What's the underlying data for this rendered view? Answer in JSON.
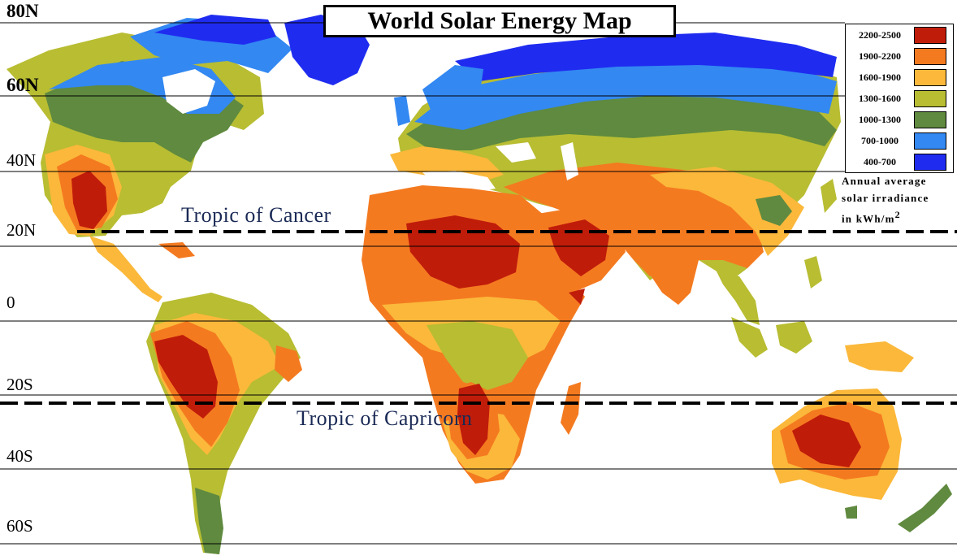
{
  "title": "World Solar Energy  Map",
  "latitudes": [
    "80N",
    "60N",
    "40N",
    "20N",
    "0",
    "20S",
    "40S",
    "60S"
  ],
  "tropics": {
    "cancer": "Tropic of Cancer",
    "capricorn": "Tropic of Capricorn"
  },
  "legend": {
    "items": [
      {
        "range": "2200-2500",
        "color": "#c01c0a"
      },
      {
        "range": "1900-2200",
        "color": "#f47a20"
      },
      {
        "range": "1600-1900",
        "color": "#fbb83a"
      },
      {
        "range": "1300-1600",
        "color": "#b8bd32"
      },
      {
        "range": "1000-1300",
        "color": "#5f8a3f"
      },
      {
        "range": "700-1000",
        "color": "#3388f2"
      },
      {
        "range": "400-700",
        "color": "#1f2cf0"
      }
    ],
    "caption_line1": "Annual average",
    "caption_line2": "solar irradiance",
    "caption_line3": "in kWh/m",
    "caption_sup": "2"
  }
}
